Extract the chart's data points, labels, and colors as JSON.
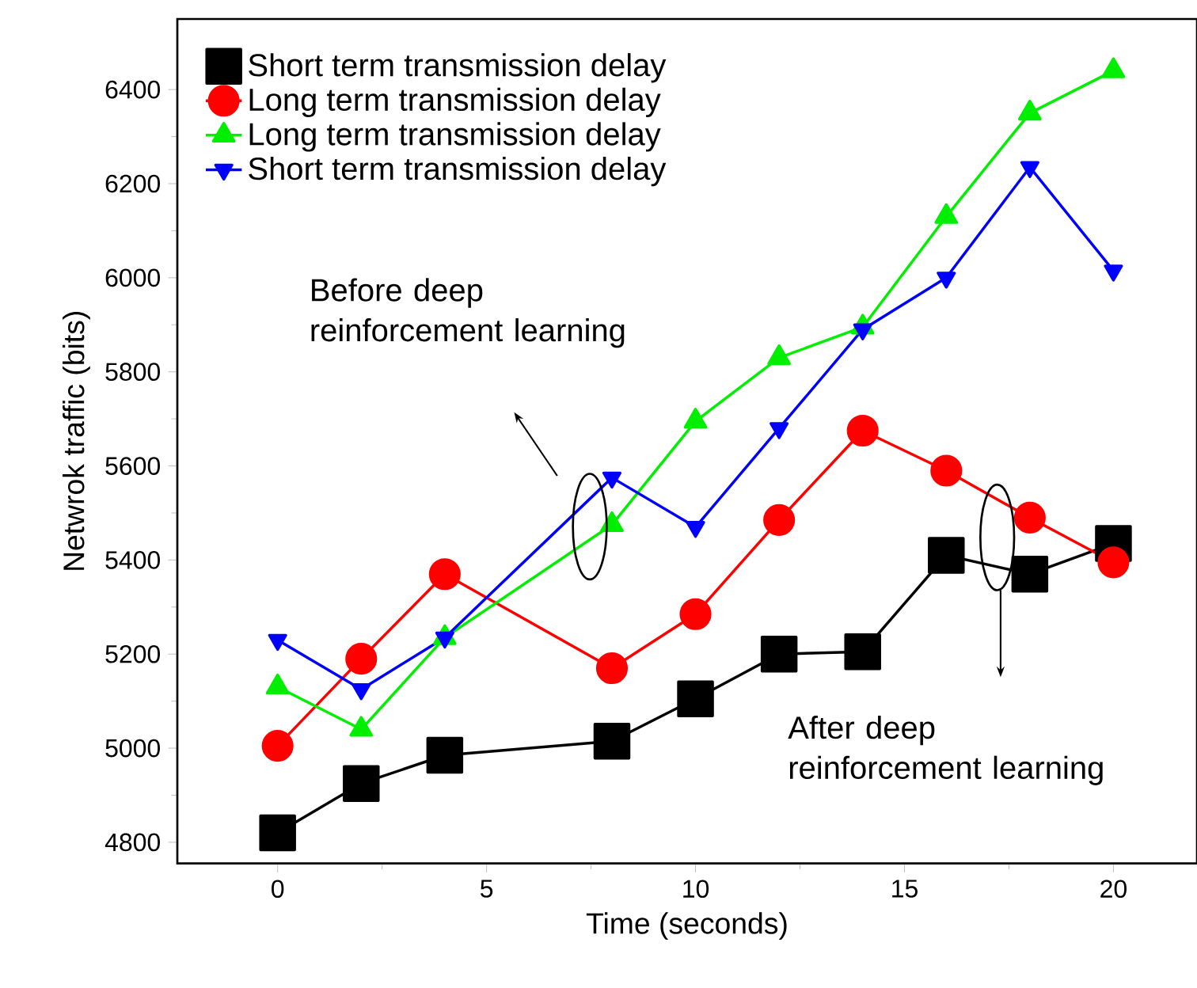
{
  "chart_data": {
    "type": "line",
    "xlabel": "Time (seconds)",
    "ylabel": "Netwrok traffic (bits)",
    "x": [
      0,
      2,
      4,
      8,
      10,
      12,
      14,
      16,
      18,
      20
    ],
    "series": [
      {
        "name": "Short term transmission delay",
        "color": "#000000",
        "marker": "square",
        "values": [
          4820,
          4925,
          4985,
          5015,
          5105,
          5200,
          5205,
          5410,
          5370,
          5435
        ]
      },
      {
        "name": "Long term transmission delay",
        "color": "#ff0000",
        "marker": "circle",
        "values": [
          5005,
          5190,
          5370,
          5170,
          5285,
          5485,
          5675,
          5590,
          5490,
          5395
        ]
      },
      {
        "name": "Long term transmission delay",
        "color": "#00ee00",
        "marker": "triangle",
        "values": [
          5130,
          5040,
          5235,
          5475,
          5695,
          5830,
          5895,
          6130,
          6350,
          6440
        ]
      },
      {
        "name": "Short term transmission delay",
        "color": "#0000ff",
        "marker": "triangle-down",
        "values": [
          5230,
          5125,
          5235,
          5575,
          5470,
          5680,
          5890,
          6000,
          6235,
          6015
        ]
      }
    ],
    "xlim": [
      -2.4,
      22
    ],
    "ylim": [
      4755,
      6550
    ],
    "xticks": [
      0,
      5,
      10,
      15,
      20
    ],
    "yticks": [
      4800,
      5000,
      5200,
      5400,
      5600,
      5800,
      6000,
      6200,
      6400
    ],
    "legend": "top left",
    "grid": false,
    "annotations": [
      "Before deep reinforcement learning",
      "After deep reinforcement learning"
    ]
  }
}
